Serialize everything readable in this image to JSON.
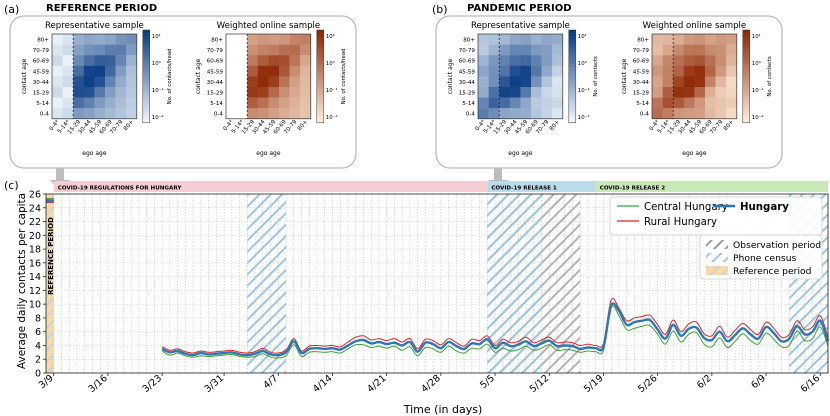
{
  "panels": {
    "a": {
      "label": "(a)",
      "title": "REFERENCE PERIOD",
      "heatmaps": [
        {
          "title": "Representative sample",
          "colormap": "blue",
          "cbar_label": "No. of contacts/head",
          "cbar_ticks": [
            "10¹",
            "10⁰",
            "10⁻¹",
            "10⁻²"
          ]
        },
        {
          "title": "Weighted online sample",
          "colormap": "orange",
          "cbar_label": "No. of contacts/head",
          "cbar_ticks": [
            "10¹",
            "10⁰",
            "10⁻¹",
            "10⁻²"
          ]
        }
      ]
    },
    "b": {
      "label": "(b)",
      "title": "PANDEMIC PERIOD",
      "heatmaps": [
        {
          "title": "Representative sample",
          "colormap": "blue",
          "cbar_label": "No. of contacts",
          "cbar_ticks": [
            "10¹",
            "10⁰",
            "10⁻¹",
            "10⁻²"
          ]
        },
        {
          "title": "Weighted online sample",
          "colormap": "orange",
          "cbar_label": "No. of contacts",
          "cbar_ticks": [
            "10¹",
            "10⁰",
            "10⁻¹",
            "10⁻²"
          ]
        }
      ]
    },
    "c": {
      "label": "(c)"
    }
  },
  "age_groups_y": [
    "80+",
    "70-79",
    "60-69",
    "45-59",
    "30-44",
    "15-29",
    "5-14",
    "0-4"
  ],
  "age_groups_x": [
    "0-4*",
    "5-14*",
    "15-29",
    "30-44",
    "45-59",
    "60-69",
    "70-79",
    "80+"
  ],
  "heatmap_xlabel": "ego age",
  "heatmap_ylabel": "contact age",
  "phases": [
    {
      "label": "COVID-19 REGULATIONS FOR HUNGARY",
      "start": 0,
      "end": 56,
      "color": "#f2cdd3"
    },
    {
      "label": "COVID-19 RELEASE 1",
      "start": 56,
      "end": 70,
      "color": "#bcdbe8"
    },
    {
      "label": "COVID-19 RELEASE 2",
      "start": 70,
      "end": 100,
      "color": "#c9e8b8"
    }
  ],
  "chart_data": {
    "type": "line",
    "title": "",
    "xlabel": "Time (in days)",
    "ylabel": "Average daily contacts per capita",
    "xlim": [
      -1,
      100
    ],
    "ylim": [
      0,
      26
    ],
    "yticks": [
      0,
      2,
      4,
      6,
      8,
      10,
      12,
      14,
      16,
      18,
      20,
      22,
      24,
      26
    ],
    "xticks": [
      {
        "day": 0,
        "label": "3/9"
      },
      {
        "day": 7,
        "label": "3/16"
      },
      {
        "day": 14,
        "label": "3/23"
      },
      {
        "day": 22,
        "label": "3/31"
      },
      {
        "day": 29,
        "label": "4/7"
      },
      {
        "day": 36,
        "label": "4/14"
      },
      {
        "day": 43,
        "label": "4/21"
      },
      {
        "day": 50,
        "label": "4/28"
      },
      {
        "day": 57,
        "label": "5/5"
      },
      {
        "day": 64,
        "label": "5/12"
      },
      {
        "day": 71,
        "label": "5/19"
      },
      {
        "day": 78,
        "label": "5/26"
      },
      {
        "day": 85,
        "label": "6/2"
      },
      {
        "day": 92,
        "label": "6/9"
      },
      {
        "day": 99,
        "label": "6/16"
      }
    ],
    "regions": [
      {
        "type": "reference",
        "label": "Reference period",
        "text": "REFERENCE PERIOD",
        "start": -1,
        "end": 0
      },
      {
        "type": "phone",
        "label": "Phone census",
        "start": 25,
        "end": 30
      },
      {
        "type": "observation",
        "label": "Observation period",
        "start": 56,
        "end": 68
      },
      {
        "type": "phone",
        "label": "Phone census",
        "start": 56,
        "end": 63
      },
      {
        "type": "phone",
        "label": "Phone census",
        "start": 95,
        "end": 100
      }
    ],
    "reference_values": {
      "Hungary": 25.0,
      "Central Hungary": 25.3,
      "Rural Hungary": 24.8
    },
    "legend_lines": [
      "Central Hungary",
      "Rural Hungary",
      "Hungary"
    ],
    "legend_regions": [
      "Observation period",
      "Phone census",
      "Reference period"
    ],
    "series": [
      {
        "name": "Hungary",
        "color": "#2f77b4",
        "x": [
          14,
          15,
          16,
          17,
          18,
          19,
          20,
          21,
          22,
          23,
          24,
          25,
          26,
          27,
          28,
          29,
          30,
          31,
          32,
          33,
          34,
          35,
          36,
          37,
          38,
          39,
          40,
          41,
          42,
          43,
          44,
          45,
          46,
          47,
          48,
          49,
          50,
          51,
          52,
          53,
          54,
          55,
          56,
          57,
          58,
          59,
          60,
          61,
          62,
          63,
          64,
          65,
          66,
          67,
          68,
          69,
          70,
          71,
          72,
          73,
          74,
          75,
          76,
          77,
          78,
          79,
          80,
          81,
          82,
          83,
          84,
          85,
          86,
          87,
          88,
          89,
          90,
          91,
          92,
          93,
          94,
          95,
          96,
          97,
          98,
          99,
          100
        ],
        "values": [
          3.5,
          3.0,
          3.2,
          2.8,
          2.6,
          2.9,
          2.7,
          2.8,
          2.9,
          3.0,
          2.7,
          2.6,
          2.8,
          3.2,
          2.7,
          2.6,
          3.0,
          4.6,
          2.9,
          3.5,
          3.6,
          3.5,
          3.6,
          3.4,
          4.0,
          4.6,
          4.8,
          4.3,
          4.5,
          4.2,
          4.4,
          4.0,
          4.5,
          3.1,
          4.4,
          4.2,
          3.6,
          4.5,
          3.9,
          3.5,
          4.3,
          4.2,
          4.9,
          3.6,
          4.4,
          3.9,
          4.1,
          4.6,
          3.9,
          4.3,
          4.7,
          3.9,
          4.0,
          3.9,
          3.5,
          3.7,
          3.6,
          3.8,
          9.8,
          9.0,
          7.0,
          7.4,
          7.6,
          7.7,
          6.3,
          5.0,
          7.0,
          5.4,
          6.4,
          6.6,
          5.1,
          4.8,
          6.0,
          4.6,
          5.5,
          6.5,
          5.6,
          5.0,
          6.7,
          5.8,
          4.6,
          5.0,
          6.8,
          5.6,
          6.0,
          7.6,
          4.6
        ]
      },
      {
        "name": "Central Hungary",
        "color": "#3aa03a",
        "x": [
          14,
          15,
          16,
          17,
          18,
          19,
          20,
          21,
          22,
          23,
          24,
          25,
          26,
          27,
          28,
          29,
          30,
          31,
          32,
          33,
          34,
          35,
          36,
          37,
          38,
          39,
          40,
          41,
          42,
          43,
          44,
          45,
          46,
          47,
          48,
          49,
          50,
          51,
          52,
          53,
          54,
          55,
          56,
          57,
          58,
          59,
          60,
          61,
          62,
          63,
          64,
          65,
          66,
          67,
          68,
          69,
          70,
          71,
          72,
          73,
          74,
          75,
          76,
          77,
          78,
          79,
          80,
          81,
          82,
          83,
          84,
          85,
          86,
          87,
          88,
          89,
          90,
          91,
          92,
          93,
          94,
          95,
          96,
          97,
          98,
          99,
          100
        ],
        "values": [
          3.2,
          2.6,
          2.9,
          2.5,
          2.3,
          2.5,
          2.4,
          2.5,
          2.6,
          2.7,
          2.4,
          2.3,
          2.4,
          2.8,
          2.3,
          2.2,
          2.5,
          4.1,
          2.4,
          3.0,
          3.1,
          3.0,
          3.1,
          2.9,
          3.5,
          4.1,
          4.1,
          3.7,
          3.9,
          3.6,
          3.9,
          3.3,
          3.8,
          2.5,
          3.7,
          3.5,
          3.0,
          3.9,
          3.2,
          2.9,
          3.6,
          3.5,
          4.2,
          3.0,
          3.6,
          3.2,
          3.4,
          3.9,
          3.3,
          3.6,
          4.1,
          3.3,
          3.4,
          3.3,
          3.0,
          3.2,
          3.1,
          3.3,
          9.5,
          8.3,
          6.3,
          6.5,
          6.8,
          6.9,
          5.6,
          4.2,
          6.1,
          4.5,
          5.6,
          5.9,
          4.2,
          3.8,
          5.1,
          3.7,
          4.6,
          5.7,
          4.7,
          4.2,
          5.8,
          4.9,
          3.8,
          4.0,
          6.1,
          4.7,
          5.0,
          6.7,
          3.9
        ]
      },
      {
        "name": "Rural Hungary",
        "color": "#d62728",
        "x": [
          14,
          15,
          16,
          17,
          18,
          19,
          20,
          21,
          22,
          23,
          24,
          25,
          26,
          27,
          28,
          29,
          30,
          31,
          32,
          33,
          34,
          35,
          36,
          37,
          38,
          39,
          40,
          41,
          42,
          43,
          44,
          45,
          46,
          47,
          48,
          49,
          50,
          51,
          52,
          53,
          54,
          55,
          56,
          57,
          58,
          59,
          60,
          61,
          62,
          63,
          64,
          65,
          66,
          67,
          68,
          69,
          70,
          71,
          72,
          73,
          74,
          75,
          76,
          77,
          78,
          79,
          80,
          81,
          82,
          83,
          84,
          85,
          86,
          87,
          88,
          89,
          90,
          91,
          92,
          93,
          94,
          95,
          96,
          97,
          98,
          99,
          100
        ],
        "values": [
          3.8,
          3.3,
          3.5,
          3.1,
          2.9,
          3.2,
          3.0,
          3.1,
          3.2,
          3.3,
          3.0,
          2.9,
          3.1,
          3.6,
          3.0,
          2.9,
          3.3,
          5.0,
          3.2,
          3.9,
          4.0,
          3.9,
          4.0,
          3.8,
          4.5,
          5.2,
          5.4,
          4.8,
          5.0,
          4.7,
          5.0,
          4.5,
          5.0,
          3.5,
          4.9,
          4.7,
          4.1,
          5.0,
          4.4,
          3.9,
          4.9,
          4.7,
          5.4,
          4.0,
          4.9,
          4.4,
          4.6,
          5.2,
          4.4,
          4.8,
          5.2,
          4.4,
          4.5,
          4.4,
          4.0,
          4.2,
          4.0,
          4.3,
          10.6,
          9.4,
          7.6,
          8.0,
          8.2,
          8.4,
          7.0,
          5.6,
          7.7,
          6.0,
          7.1,
          7.4,
          5.7,
          5.4,
          6.8,
          5.2,
          6.2,
          7.2,
          6.3,
          5.6,
          7.4,
          6.5,
          5.2,
          5.6,
          7.6,
          6.3,
          6.7,
          8.3,
          5.2
        ]
      }
    ]
  }
}
